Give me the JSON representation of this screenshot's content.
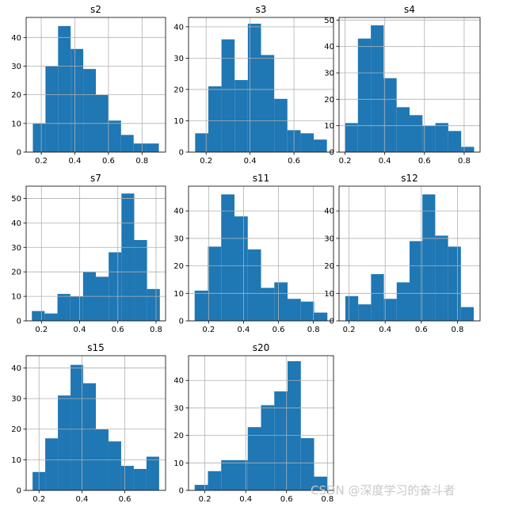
{
  "watermark": "CSDN @深度学习的奋斗者",
  "chart_data": [
    {
      "type": "bar",
      "title": "s2",
      "bin_edges": [
        0.15,
        0.225,
        0.3,
        0.375,
        0.45,
        0.525,
        0.6,
        0.675,
        0.75,
        0.825,
        0.9
      ],
      "values": [
        10,
        30,
        44,
        36,
        29,
        20,
        11,
        6,
        3,
        3
      ],
      "xlim": [
        0.11,
        0.94
      ],
      "ylim": [
        0,
        47
      ],
      "xticks": [
        0.2,
        0.4,
        0.6,
        0.8
      ],
      "yticks": [
        0,
        10,
        20,
        30,
        40
      ],
      "grid": true
    },
    {
      "type": "bar",
      "title": "s3",
      "bin_edges": [
        0.15,
        0.21,
        0.27,
        0.33,
        0.39,
        0.45,
        0.51,
        0.57,
        0.63,
        0.69,
        0.75
      ],
      "values": [
        6,
        21,
        36,
        23,
        41,
        31,
        17,
        7,
        6,
        4
      ],
      "xlim": [
        0.12,
        0.78
      ],
      "ylim": [
        0,
        43
      ],
      "xticks": [
        0.2,
        0.4,
        0.6
      ],
      "yticks": [
        0,
        10,
        20,
        30,
        40
      ],
      "grid": true
    },
    {
      "type": "bar",
      "title": "s4",
      "bin_edges": [
        0.2,
        0.265,
        0.33,
        0.395,
        0.46,
        0.525,
        0.59,
        0.655,
        0.72,
        0.785,
        0.85
      ],
      "values": [
        11,
        43,
        48,
        28,
        17,
        14,
        10,
        11,
        8,
        2
      ],
      "xlim": [
        0.17,
        0.88
      ],
      "ylim": [
        0,
        51
      ],
      "xticks": [
        0.2,
        0.4,
        0.6,
        0.8
      ],
      "yticks": [
        0,
        10,
        20,
        30,
        40,
        50
      ],
      "grid": true
    },
    {
      "type": "bar",
      "title": "s7",
      "bin_edges": [
        0.15,
        0.217,
        0.284,
        0.351,
        0.418,
        0.485,
        0.552,
        0.619,
        0.686,
        0.753,
        0.82
      ],
      "values": [
        4,
        3,
        11,
        10,
        20,
        18,
        28,
        52,
        33,
        13
      ],
      "xlim": [
        0.12,
        0.85
      ],
      "ylim": [
        0,
        55
      ],
      "xticks": [
        0.2,
        0.4,
        0.6,
        0.8
      ],
      "yticks": [
        0,
        10,
        20,
        30,
        40,
        50
      ],
      "grid": true
    },
    {
      "type": "bar",
      "title": "s11",
      "bin_edges": [
        0.12,
        0.196,
        0.272,
        0.348,
        0.424,
        0.5,
        0.576,
        0.652,
        0.728,
        0.804,
        0.88
      ],
      "values": [
        11,
        27,
        46,
        38,
        26,
        12,
        14,
        8,
        7,
        3
      ],
      "xlim": [
        0.085,
        0.915
      ],
      "ylim": [
        0,
        49
      ],
      "xticks": [
        0.2,
        0.4,
        0.6,
        0.8
      ],
      "yticks": [
        0,
        10,
        20,
        30,
        40
      ],
      "grid": true
    },
    {
      "type": "bar",
      "title": "s12",
      "bin_edges": [
        0.18,
        0.251,
        0.322,
        0.393,
        0.464,
        0.535,
        0.606,
        0.677,
        0.748,
        0.819,
        0.89
      ],
      "values": [
        9,
        6,
        17,
        8,
        14,
        29,
        46,
        31,
        27,
        5
      ],
      "xlim": [
        0.145,
        0.925
      ],
      "ylim": [
        0,
        49
      ],
      "xticks": [
        0.2,
        0.4,
        0.6,
        0.8
      ],
      "yticks": [
        0,
        10,
        20,
        30,
        40
      ],
      "grid": true
    },
    {
      "type": "bar",
      "title": "s15",
      "bin_edges": [
        0.17,
        0.229,
        0.288,
        0.347,
        0.406,
        0.465,
        0.524,
        0.583,
        0.642,
        0.701,
        0.76
      ],
      "values": [
        6,
        17,
        31,
        41,
        35,
        20,
        16,
        8,
        7,
        11
      ],
      "xlim": [
        0.14,
        0.79
      ],
      "ylim": [
        0,
        44
      ],
      "xticks": [
        0.2,
        0.4,
        0.6
      ],
      "yticks": [
        0,
        10,
        20,
        30,
        40
      ],
      "grid": true
    },
    {
      "type": "bar",
      "title": "s20",
      "bin_edges": [
        0.15,
        0.215,
        0.28,
        0.345,
        0.41,
        0.475,
        0.54,
        0.605,
        0.67,
        0.735,
        0.8
      ],
      "values": [
        2,
        7,
        11,
        11,
        23,
        31,
        36,
        47,
        19,
        5
      ],
      "xlim": [
        0.12,
        0.83
      ],
      "ylim": [
        0,
        49
      ],
      "xticks": [
        0.2,
        0.4,
        0.6,
        0.8
      ],
      "yticks": [
        0,
        10,
        20,
        30,
        40
      ],
      "grid": true
    }
  ],
  "colors": {
    "bar": "#1f77b4",
    "grid": "#b0b0b0",
    "axis": "#000000"
  }
}
